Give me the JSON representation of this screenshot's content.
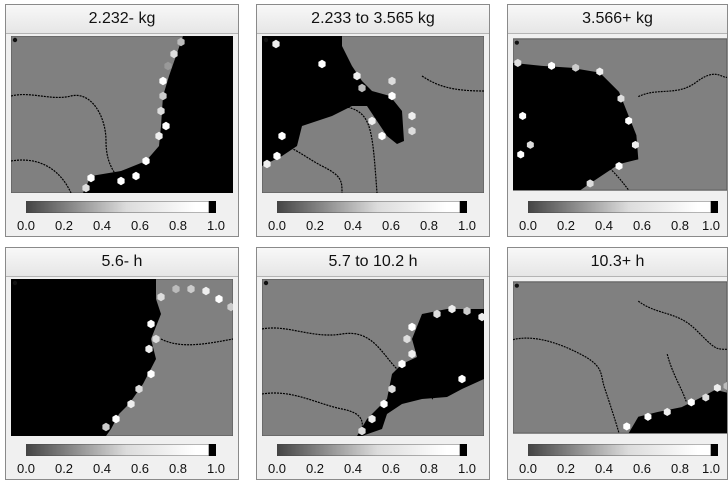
{
  "panels": [
    {
      "title": "2.232- kg"
    },
    {
      "title": "2.233 to 3.565 kg"
    },
    {
      "title": "3.566+ kg"
    },
    {
      "title": "5.6- h"
    },
    {
      "title": "5.7 to 10.2 h"
    },
    {
      "title": "10.3+ h"
    }
  ],
  "colorbar": {
    "ticks": [
      "0.0",
      "0.2",
      "0.4",
      "0.6",
      "0.8",
      "1.0"
    ],
    "range": [
      0,
      1
    ],
    "colors": {
      "low": "#444444",
      "mid": "#ffffff",
      "high": "#000000"
    }
  },
  "map_colors": {
    "background": "#808080",
    "active": "#000000",
    "boundary": "#000000"
  }
}
